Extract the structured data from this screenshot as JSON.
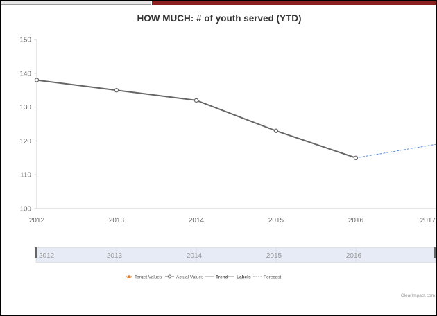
{
  "chart_data": {
    "type": "line",
    "title": "HOW MUCH: # of youth served (YTD)",
    "xlabel": "",
    "ylabel": "",
    "x": [
      "2012",
      "2013",
      "2014",
      "2015",
      "2016",
      "2017"
    ],
    "ylim": [
      100,
      150
    ],
    "yticks": [
      100,
      110,
      120,
      130,
      140,
      150
    ],
    "grid": false,
    "legend_position": "bottom",
    "series": [
      {
        "name": "Actual Values",
        "x": [
          "2012",
          "2013",
          "2014",
          "2015",
          "2016"
        ],
        "values": [
          138,
          135,
          132,
          123,
          115
        ],
        "color": "#666666",
        "style": "solid-with-markers"
      },
      {
        "name": "Forecast",
        "x": [
          "2016",
          "2017"
        ],
        "values": [
          115,
          119
        ],
        "color": "#5b8fd6",
        "style": "dashed"
      }
    ],
    "legend": [
      {
        "name": "Target Values",
        "color": "#e8812b"
      },
      {
        "name": "Actual Values",
        "color": "#666666"
      },
      {
        "name": "Trend",
        "color": "#999999"
      },
      {
        "name": "Labels",
        "color": "#888888"
      },
      {
        "name": "Forecast",
        "color": "#999999"
      }
    ],
    "navigator_ticks": [
      "2012",
      "2013",
      "2014",
      "2015",
      "2016"
    ]
  },
  "credit": "ClearImpact.com"
}
